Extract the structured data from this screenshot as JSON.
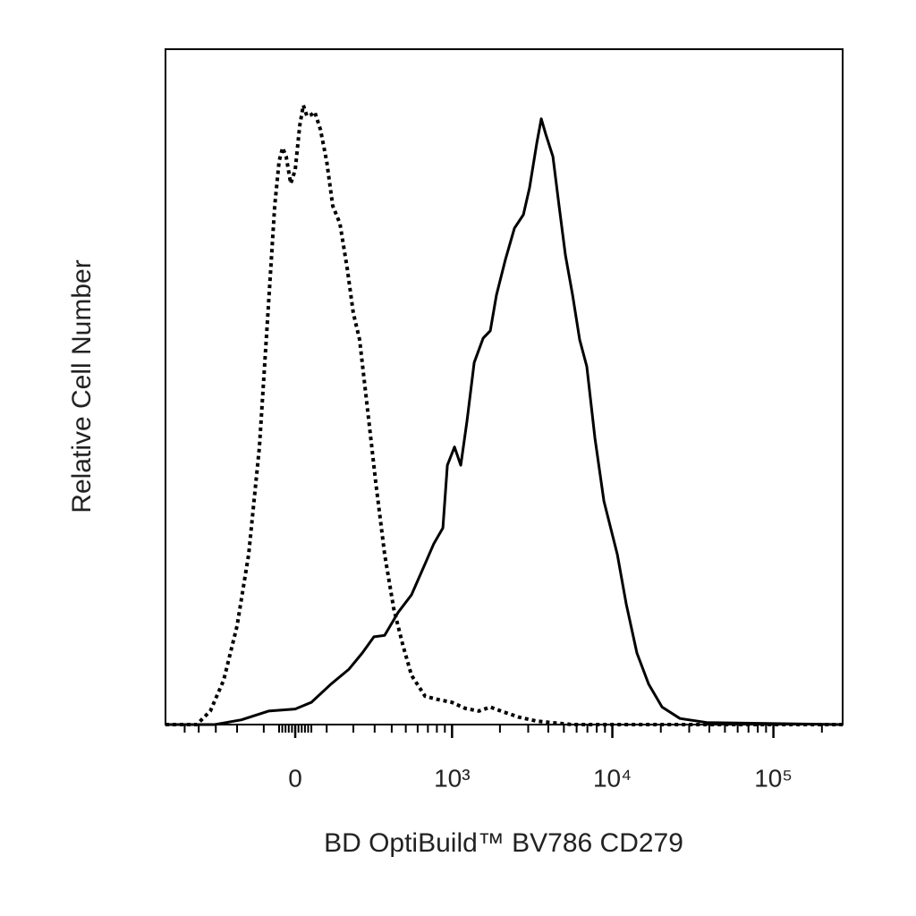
{
  "chart_data": {
    "type": "histogram-overlay",
    "xlabel": "BD OptiBuild™ BV786 CD279",
    "ylabel": "Relative Cell Number",
    "xscale": "biexponential",
    "xlim": [
      -670,
      269000
    ],
    "ylim": [
      0,
      100
    ],
    "xticks": [
      0,
      {
        "value": 1000,
        "label": "10³"
      },
      {
        "value": 10000,
        "label": "10⁴"
      },
      {
        "value": 100000,
        "label": "10⁵"
      }
    ],
    "xticks_minor": [
      -500,
      -400,
      -300,
      -200,
      -100,
      -50,
      -40,
      -30,
      -20,
      -10,
      10,
      20,
      30,
      40,
      50,
      100,
      200,
      300,
      400,
      500,
      600,
      700,
      800,
      900,
      2000,
      3000,
      4000,
      5000,
      6000,
      7000,
      8000,
      9000,
      20000,
      30000,
      40000,
      50000,
      60000,
      70000,
      80000,
      90000,
      200000
    ],
    "series": [
      {
        "color": "#000000",
        "dash": "dotted",
        "x": [
          -670,
          -413,
          -330,
          -260,
          -200,
          -154,
          -115,
          -84,
          -64,
          -50,
          -39,
          -28,
          -14,
          0,
          14,
          25,
          36,
          50,
          61,
          79,
          100,
          121,
          147,
          175,
          200,
          227,
          260,
          306,
          356,
          413,
          476,
          546,
          671,
          818,
          996,
          1212,
          1477,
          1740,
          2030,
          2625,
          3393,
          5660,
          269000
        ],
        "values": [
          0,
          0,
          2.0,
          6.6,
          14.6,
          25.2,
          41.1,
          62.3,
          76.8,
          83.4,
          85.4,
          84.1,
          80.1,
          82.1,
          88.7,
          91.7,
          90.1,
          90.3,
          90.7,
          88.1,
          83.4,
          76.8,
          74.2,
          67.5,
          60.9,
          57.0,
          47.7,
          35.8,
          25.2,
          17.2,
          11.9,
          7.3,
          4.2,
          3.7,
          3.3,
          2.4,
          2.0,
          2.6,
          2.0,
          1.1,
          0.5,
          0,
          0
        ]
      },
      {
        "color": "#000000",
        "dash": "solid",
        "x": [
          -670,
          -306,
          -182,
          -84,
          0,
          50,
          115,
          182,
          239,
          296,
          356,
          443,
          546,
          671,
          765,
          874,
          933,
          1036,
          1135,
          1243,
          1380,
          1570,
          1740,
          1903,
          2165,
          2462,
          2800,
          3060,
          3393,
          3618,
          3857,
          4272,
          4670,
          5110,
          5660,
          6267,
          6944,
          7794,
          8858,
          10730,
          12190,
          14210,
          16790,
          20340,
          26280,
          38550,
          269000
        ],
        "values": [
          0,
          0,
          0.7,
          2.0,
          2.3,
          3.3,
          6.0,
          8.2,
          10.6,
          13.0,
          13.2,
          16.6,
          19.2,
          23.8,
          26.8,
          29.1,
          38.4,
          41.1,
          38.4,
          45.0,
          53.6,
          57.2,
          58.3,
          63.6,
          68.9,
          73.5,
          75.5,
          79.5,
          86.1,
          89.7,
          87.4,
          84.1,
          76.8,
          69.5,
          63.6,
          57.0,
          53.0,
          42.4,
          33.1,
          25.2,
          17.9,
          10.6,
          6.0,
          2.6,
          0.9,
          0.3,
          0
        ]
      }
    ]
  }
}
